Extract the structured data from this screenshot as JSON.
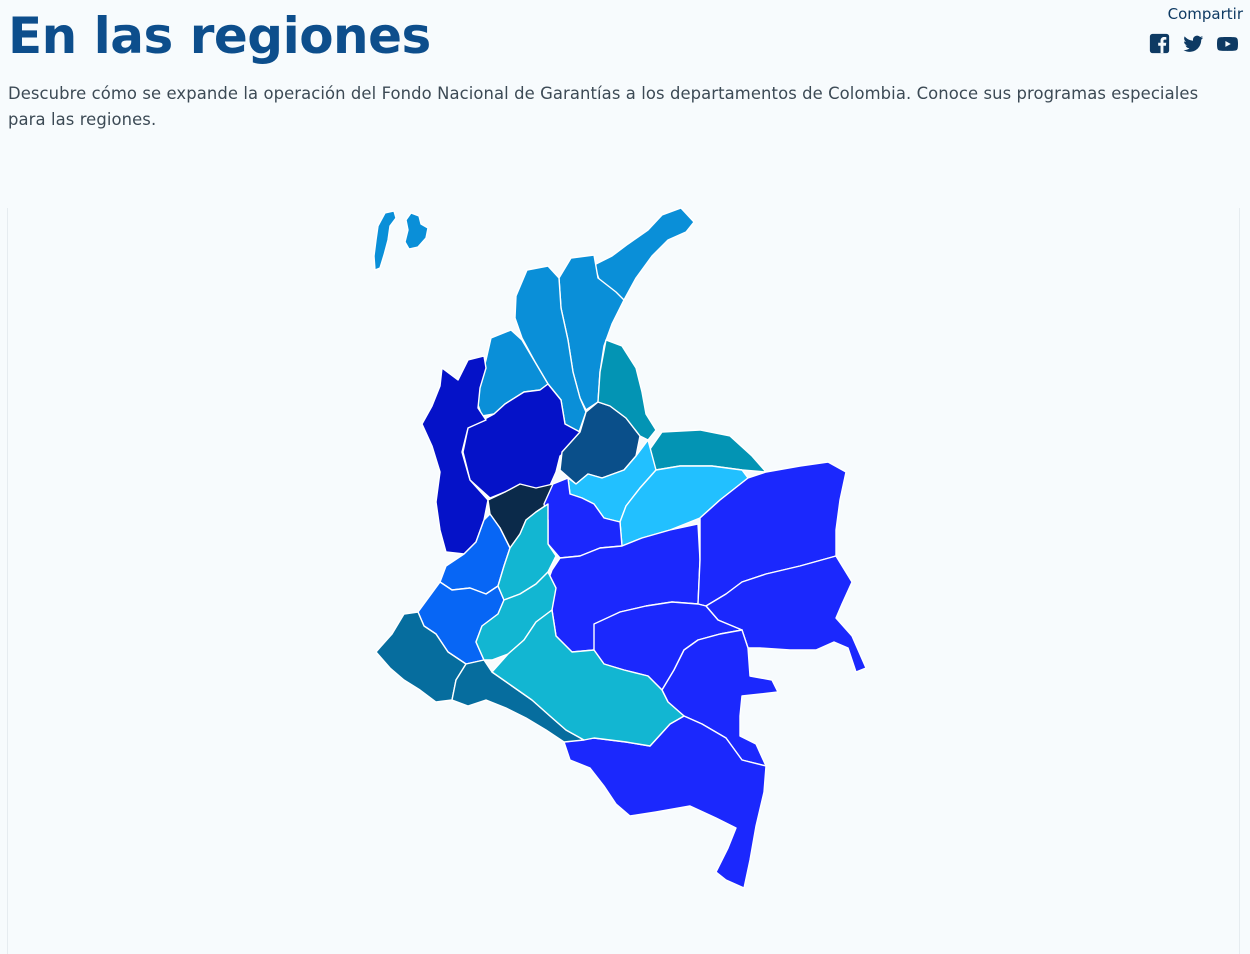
{
  "header": {
    "title": "En las regiones",
    "share_label": "Compartir",
    "social_icons": [
      "facebook-icon",
      "twitter-icon",
      "youtube-icon"
    ]
  },
  "intro": {
    "description": "Descubre cómo se expande la operación del Fondo Nacional de Garantías a los departamentos de Colombia. Conoce sus programas especiales para las regiones."
  },
  "colors": {
    "title": "#0d4e8c",
    "icons": "#0e3a63",
    "caribe": "#0a8fd8",
    "antioquia_choco": "#0512c8",
    "eje_cafetero": "#0b2a4a",
    "santander": "#0a4f8a",
    "norte_santander_arauca": "#0394b4",
    "boyaca_casanare": "#22c0ff",
    "pacifico": "#0766f5",
    "narino_putumayo": "#066d9e",
    "huila_caqueta": "#12b6d2",
    "orinoquia_amazonia": "#1b28fd"
  }
}
